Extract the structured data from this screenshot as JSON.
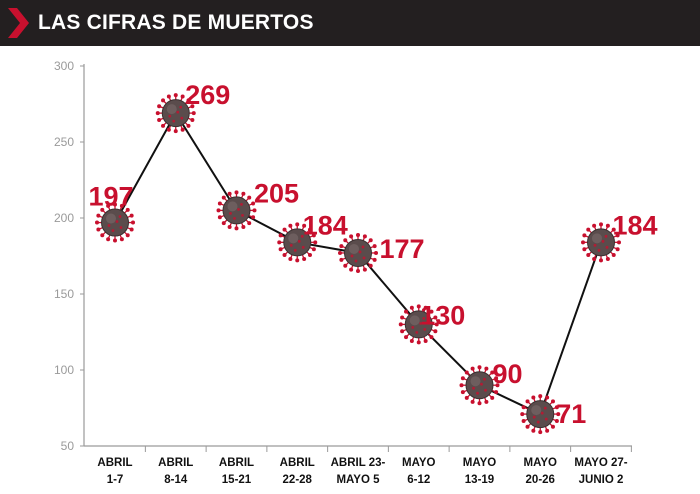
{
  "header": {
    "title": "LAS CIFRAS DE MUERTOS"
  },
  "colors": {
    "header_bg": "#231f20",
    "accent": "#c8102e",
    "label": "#c8102e",
    "axis": "#9a9a9a",
    "tick_text": "#9a9a9a",
    "line": "#111111",
    "virus": "#5a4c4c",
    "spike": "#c8102e"
  },
  "icons": {
    "marker": "coronavirus-icon",
    "header": "chevron-icon"
  },
  "chart_data": {
    "type": "line",
    "title": "LAS CIFRAS DE MUERTOS",
    "xlabel": "",
    "ylabel": "",
    "ylim": [
      50,
      300
    ],
    "yticks": [
      50,
      100,
      150,
      200,
      250,
      300
    ],
    "grid": false,
    "categories": [
      [
        "ABRIL",
        "1-7"
      ],
      [
        "ABRIL",
        "8-14"
      ],
      [
        "ABRIL",
        "15-21"
      ],
      [
        "ABRIL",
        "22-28"
      ],
      [
        "ABRIL 23-",
        "MAYO 5"
      ],
      [
        "MAYO",
        "6-12"
      ],
      [
        "MAYO",
        "13-19"
      ],
      [
        "MAYO",
        "20-26"
      ],
      [
        "MAYO 27-",
        "JUNIO 2"
      ]
    ],
    "series": [
      {
        "values": [
          197,
          269,
          205,
          184,
          177,
          130,
          90,
          71,
          184
        ]
      }
    ],
    "data_labels": [
      "197",
      "269",
      "205",
      "184",
      "177",
      "130",
      "90",
      "71",
      "184"
    ]
  }
}
